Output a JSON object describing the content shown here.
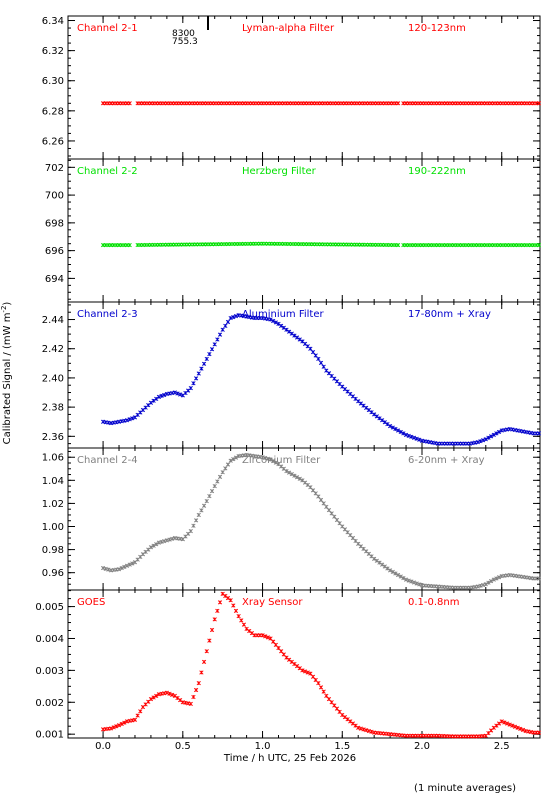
{
  "figure": {
    "shared_xlabel": "Time / h UTC, 25 Feb 2026",
    "shared_ylabel": "Calibrated Signal / (mW m",
    "ylabel_exponent": "-2",
    "ylabel_close": ")",
    "footnote": "(1 minute averages)",
    "xticks": [
      "0.0",
      "0.5",
      "1.0",
      "1.5",
      "2.0",
      "2.5"
    ],
    "xtick_values": [
      0,
      0.5,
      1,
      1.5,
      2,
      2.5
    ],
    "xlim": [
      -0.22,
      2.74
    ],
    "marker_labels": [
      "8300",
      "755.3"
    ]
  },
  "chart_data": [
    {
      "type": "scatter",
      "channel": "Channel 2-1",
      "filter": "Lyman-alpha Filter",
      "band": "120-123nm",
      "color": "#ff0000",
      "ylim": [
        6.248,
        6.343
      ],
      "yticks": [
        "6.26",
        "6.28",
        "6.30",
        "6.32",
        "6.34"
      ],
      "ytick_values": [
        6.26,
        6.28,
        6.3,
        6.32,
        6.34
      ],
      "x": [
        0.0,
        0.17,
        0.2,
        1.85,
        1.87,
        2.74
      ],
      "y": [
        6.285,
        6.285,
        6.285,
        6.285,
        6.285,
        6.285
      ],
      "gaps": [
        [
          0.17,
          0.2
        ],
        [
          1.85,
          1.87
        ]
      ]
    },
    {
      "type": "scatter",
      "channel": "Channel 2-2",
      "filter": "Herzberg Filter",
      "band": "190-222nm",
      "color": "#00e000",
      "ylim": [
        692.3,
        702.6
      ],
      "yticks": [
        "694",
        "696",
        "698",
        "700",
        "702"
      ],
      "ytick_values": [
        694,
        696,
        698,
        700,
        702
      ],
      "x": [
        0.0,
        0.17,
        0.2,
        1.0,
        1.85,
        1.87,
        2.74
      ],
      "y": [
        696.4,
        696.4,
        696.4,
        696.5,
        696.4,
        696.4,
        696.4
      ],
      "gaps": [
        [
          0.17,
          0.2
        ],
        [
          1.85,
          1.87
        ]
      ]
    },
    {
      "type": "scatter",
      "channel": "Channel 2-3",
      "filter": "Aluminium Filter",
      "band": "17-80nm + Xray",
      "color": "#0000cc",
      "ylim": [
        2.352,
        2.452
      ],
      "yticks": [
        "2.36",
        "2.38",
        "2.40",
        "2.42",
        "2.44"
      ],
      "ytick_values": [
        2.36,
        2.38,
        2.4,
        2.42,
        2.44
      ],
      "x": [
        0.0,
        0.05,
        0.1,
        0.15,
        0.2,
        0.25,
        0.3,
        0.35,
        0.4,
        0.45,
        0.5,
        0.55,
        0.6,
        0.65,
        0.7,
        0.75,
        0.8,
        0.85,
        0.9,
        0.95,
        1.0,
        1.05,
        1.1,
        1.15,
        1.2,
        1.25,
        1.3,
        1.35,
        1.4,
        1.5,
        1.6,
        1.7,
        1.8,
        1.9,
        2.0,
        2.1,
        2.2,
        2.3,
        2.35,
        2.4,
        2.45,
        2.5,
        2.55,
        2.6,
        2.65,
        2.7,
        2.74
      ],
      "y": [
        2.37,
        2.369,
        2.37,
        2.371,
        2.373,
        2.378,
        2.383,
        2.387,
        2.389,
        2.39,
        2.388,
        2.393,
        2.403,
        2.413,
        2.423,
        2.433,
        2.441,
        2.443,
        2.442,
        2.441,
        2.441,
        2.44,
        2.437,
        2.433,
        2.429,
        2.425,
        2.42,
        2.413,
        2.405,
        2.394,
        2.384,
        2.375,
        2.367,
        2.361,
        2.357,
        2.355,
        2.355,
        2.355,
        2.356,
        2.358,
        2.361,
        2.364,
        2.365,
        2.364,
        2.363,
        2.362,
        2.362
      ]
    },
    {
      "type": "scatter",
      "channel": "Channel 2-4",
      "filter": "Zirconium Filter",
      "band": "6-20nm + Xray",
      "color": "#808080",
      "ylim": [
        0.945,
        1.068
      ],
      "yticks": [
        "0.96",
        "0.98",
        "1.00",
        "1.02",
        "1.04",
        "1.06"
      ],
      "ytick_values": [
        0.96,
        0.98,
        1.0,
        1.02,
        1.04,
        1.06
      ],
      "x": [
        0.0,
        0.05,
        0.1,
        0.15,
        0.2,
        0.25,
        0.3,
        0.35,
        0.4,
        0.45,
        0.5,
        0.55,
        0.6,
        0.65,
        0.7,
        0.75,
        0.8,
        0.85,
        0.9,
        0.95,
        1.0,
        1.05,
        1.1,
        1.15,
        1.2,
        1.25,
        1.3,
        1.35,
        1.4,
        1.5,
        1.6,
        1.7,
        1.8,
        1.9,
        2.0,
        2.1,
        2.2,
        2.3,
        2.35,
        2.4,
        2.45,
        2.5,
        2.55,
        2.6,
        2.65,
        2.7,
        2.74
      ],
      "y": [
        0.964,
        0.962,
        0.963,
        0.966,
        0.969,
        0.976,
        0.982,
        0.986,
        0.988,
        0.99,
        0.989,
        0.996,
        1.01,
        1.022,
        1.035,
        1.047,
        1.057,
        1.061,
        1.062,
        1.061,
        1.06,
        1.058,
        1.054,
        1.048,
        1.044,
        1.04,
        1.034,
        1.026,
        1.017,
        1.0,
        0.985,
        0.972,
        0.962,
        0.954,
        0.949,
        0.948,
        0.947,
        0.947,
        0.948,
        0.95,
        0.954,
        0.957,
        0.958,
        0.957,
        0.956,
        0.955,
        0.955
      ]
    },
    {
      "type": "scatter",
      "channel": "GOES",
      "filter": "Xray Sensor",
      "band": "0.1-0.8nm",
      "color": "#ff0000",
      "ylim": [
        0.00088,
        0.00552
      ],
      "yticks": [
        "0.001",
        "0.002",
        "0.003",
        "0.004",
        "0.005"
      ],
      "ytick_values": [
        0.001,
        0.002,
        0.003,
        0.004,
        0.005
      ],
      "x": [
        0.0,
        0.05,
        0.1,
        0.15,
        0.2,
        0.25,
        0.3,
        0.35,
        0.4,
        0.45,
        0.5,
        0.55,
        0.6,
        0.65,
        0.7,
        0.75,
        0.8,
        0.85,
        0.9,
        0.95,
        1.0,
        1.05,
        1.1,
        1.15,
        1.2,
        1.25,
        1.3,
        1.35,
        1.4,
        1.5,
        1.6,
        1.7,
        1.8,
        1.9,
        2.0,
        2.1,
        2.2,
        2.3,
        2.35,
        2.4,
        2.45,
        2.5,
        2.55,
        2.6,
        2.65,
        2.7,
        2.74
      ],
      "y": [
        0.00115,
        0.00118,
        0.00128,
        0.0014,
        0.00145,
        0.00185,
        0.0021,
        0.00225,
        0.0023,
        0.0022,
        0.002,
        0.00195,
        0.0026,
        0.0036,
        0.0046,
        0.0054,
        0.0052,
        0.0047,
        0.0043,
        0.0041,
        0.0041,
        0.004,
        0.0037,
        0.0034,
        0.0032,
        0.003,
        0.0029,
        0.0026,
        0.0022,
        0.0016,
        0.0012,
        0.00105,
        0.001,
        0.00095,
        0.00095,
        0.00095,
        0.00093,
        0.00093,
        0.00093,
        0.00095,
        0.0012,
        0.0014,
        0.0013,
        0.0012,
        0.0011,
        0.00105,
        0.00105
      ]
    }
  ]
}
